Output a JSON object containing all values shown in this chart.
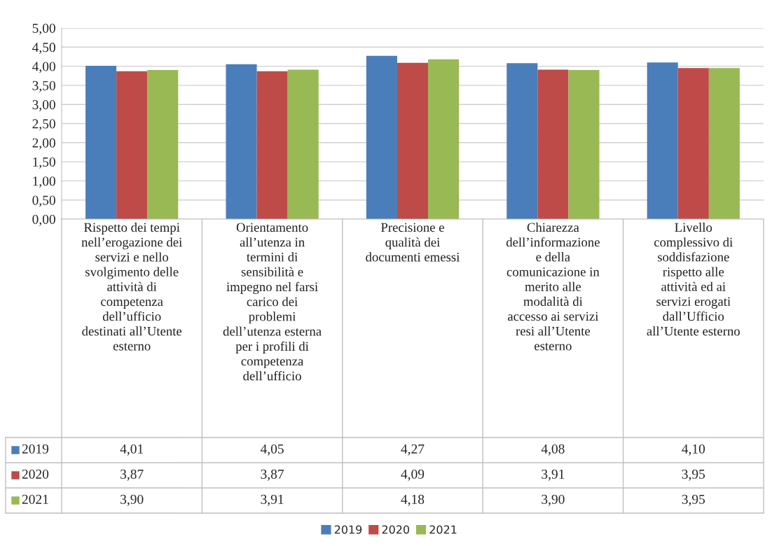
{
  "chart_data": {
    "type": "bar",
    "categories": [
      "Rispetto dei tempi\nnell’erogazione dei\nservizi e nello\nsvolgimento delle\nattività di\ncompetenza\ndell’ufficio\ndestinati all’Utente\nesterno",
      "Orientamento\nall’utenza in\ntermini di\nsensibilità e\nimpegno nel farsi\ncarico dei\nproblemi\ndell’utenza esterna\nper i profili di\ncompetenza\ndell’ufficio",
      "Precisione e\nqualità dei\ndocumenti emessi",
      "Chiarezza\ndell’informazione\ne della\ncomunicazione in\nmerito alle\nmodalità di\naccesso ai servizi\nresi all’Utente\nesterno",
      "Livello\ncomplessivo di\nsoddisfazione\nrispetto alle\nattività ed ai\nservizi erogati\ndall’Ufficio\nall’Utente esterno"
    ],
    "series": [
      {
        "name": "2019",
        "color": "#4a7ebb",
        "values": [
          4.01,
          4.05,
          4.27,
          4.08,
          4.1
        ],
        "value_labels": [
          "4,01",
          "4,05",
          "4,27",
          "4,08",
          "4,10"
        ]
      },
      {
        "name": "2020",
        "color": "#be4b48",
        "values": [
          3.87,
          3.87,
          4.09,
          3.91,
          3.95
        ],
        "value_labels": [
          "3,87",
          "3,87",
          "4,09",
          "3,91",
          "3,95"
        ]
      },
      {
        "name": "2021",
        "color": "#98b954",
        "values": [
          3.9,
          3.91,
          4.18,
          3.9,
          3.95
        ],
        "value_labels": [
          "3,90",
          "3,91",
          "4,18",
          "3,90",
          "3,95"
        ]
      }
    ],
    "ylim": [
      0,
      5
    ],
    "yticks": [
      {
        "value": 0,
        "label": "0,00"
      },
      {
        "value": 0.5,
        "label": "0,50"
      },
      {
        "value": 1,
        "label": "1,00"
      },
      {
        "value": 1.5,
        "label": "1,50"
      },
      {
        "value": 2,
        "label": "2,00"
      },
      {
        "value": 2.5,
        "label": "2,50"
      },
      {
        "value": 3,
        "label": "3,00"
      },
      {
        "value": 3.5,
        "label": "3,50"
      },
      {
        "value": 4,
        "label": "4,00"
      },
      {
        "value": 4.5,
        "label": "4,50"
      },
      {
        "value": 5,
        "label": "5,00"
      }
    ],
    "grid": "y",
    "legend": "bottom"
  }
}
